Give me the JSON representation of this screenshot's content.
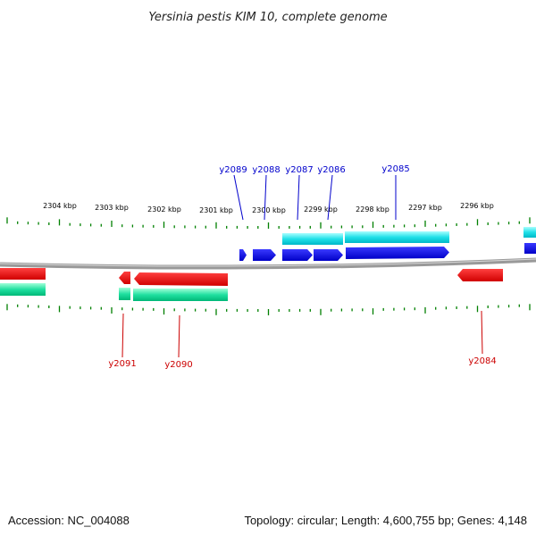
{
  "title": "Yersinia pestis KIM 10, complete genome",
  "footer": {
    "accession": "Accession: NC_004088",
    "summary": "Topology: circular; Length: 4,600,755 bp; Genes: 4,148"
  },
  "colors": {
    "background": "#ffffff",
    "backbone": "#888888",
    "forward_gene": "#0000e0",
    "forward_cds": "#00d8e0",
    "reverse_gene": "#e60000",
    "reverse_cds": "#00d890",
    "tick": "#008000",
    "label_forward": "#0000cc",
    "label_reverse": "#cc0000"
  },
  "scale": {
    "unit": "kbp",
    "labels": [
      "2304 kbp",
      "2303 kbp",
      "2302 kbp",
      "2301 kbp",
      "2300 kbp",
      "2299 kbp",
      "2298 kbp",
      "2297 kbp",
      "2296 kbp"
    ]
  },
  "genes": {
    "forward": [
      {
        "label": "y2089"
      },
      {
        "label": "y2088"
      },
      {
        "label": "y2087"
      },
      {
        "label": "y2086"
      },
      {
        "label": "y2085"
      }
    ],
    "reverse": [
      {
        "label": "y2091"
      },
      {
        "label": "y2090"
      },
      {
        "label": "y2084"
      }
    ]
  }
}
